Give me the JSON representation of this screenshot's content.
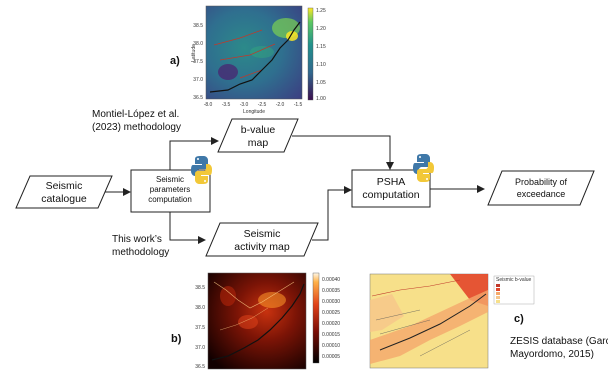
{
  "panels": {
    "a_label": "a)",
    "b_label": "b)",
    "c_label": "c)"
  },
  "nodes": {
    "seismic_catalogue": [
      "Seismic",
      "catalogue"
    ],
    "seismic_parameters": [
      "Seismic",
      "parameters",
      "computation"
    ],
    "b_value_map": [
      "b-value",
      "map"
    ],
    "seismic_activity_map": [
      "Seismic",
      "activity map"
    ],
    "psha_computation": [
      "PSHA",
      "computation"
    ],
    "probability_of_exceedance": [
      "Probability of",
      "exceedance"
    ]
  },
  "annotations": {
    "montiel_lopez": [
      "Montiel-López et al.",
      "(2023) methodology"
    ],
    "this_work": [
      "This work’s",
      "methodology"
    ],
    "zesis": [
      "ZESIS database (Garcí",
      "Mayordomo, 2015)"
    ]
  },
  "map_a": {
    "xlabel": "Longitude",
    "ylabel": "Latitude",
    "yticks": [
      "38.5",
      "38.0",
      "37.5",
      "37.0",
      "36.5"
    ],
    "xticks": [
      "-8.0",
      "-3.5",
      "-3.0",
      "-2.5",
      "-2.0",
      "-1.5"
    ],
    "colorbar_ticks": [
      "1.25",
      "1.20",
      "1.15",
      "1.10",
      "1.05",
      "1.00"
    ]
  },
  "map_b": {
    "yticks": [
      "38.5",
      "38.0",
      "37.5",
      "37.0",
      "36.5"
    ],
    "colorbar_ticks": [
      "0.00040",
      "0.00035",
      "0.00030",
      "0.00025",
      "0.00020",
      "0.00015",
      "0.00010",
      "0.00005"
    ]
  },
  "map_c": {
    "legend_title": "Seismic b-value"
  },
  "icons": [
    "python-icon",
    "python-icon"
  ],
  "colors": {
    "python_blue": "#3f78a8",
    "python_yellow": "#f2c838",
    "heatmap_dark": "#0a0000",
    "heatmap_bright": "#ff9a2a",
    "zesis_yellow": "#f7e08a"
  }
}
